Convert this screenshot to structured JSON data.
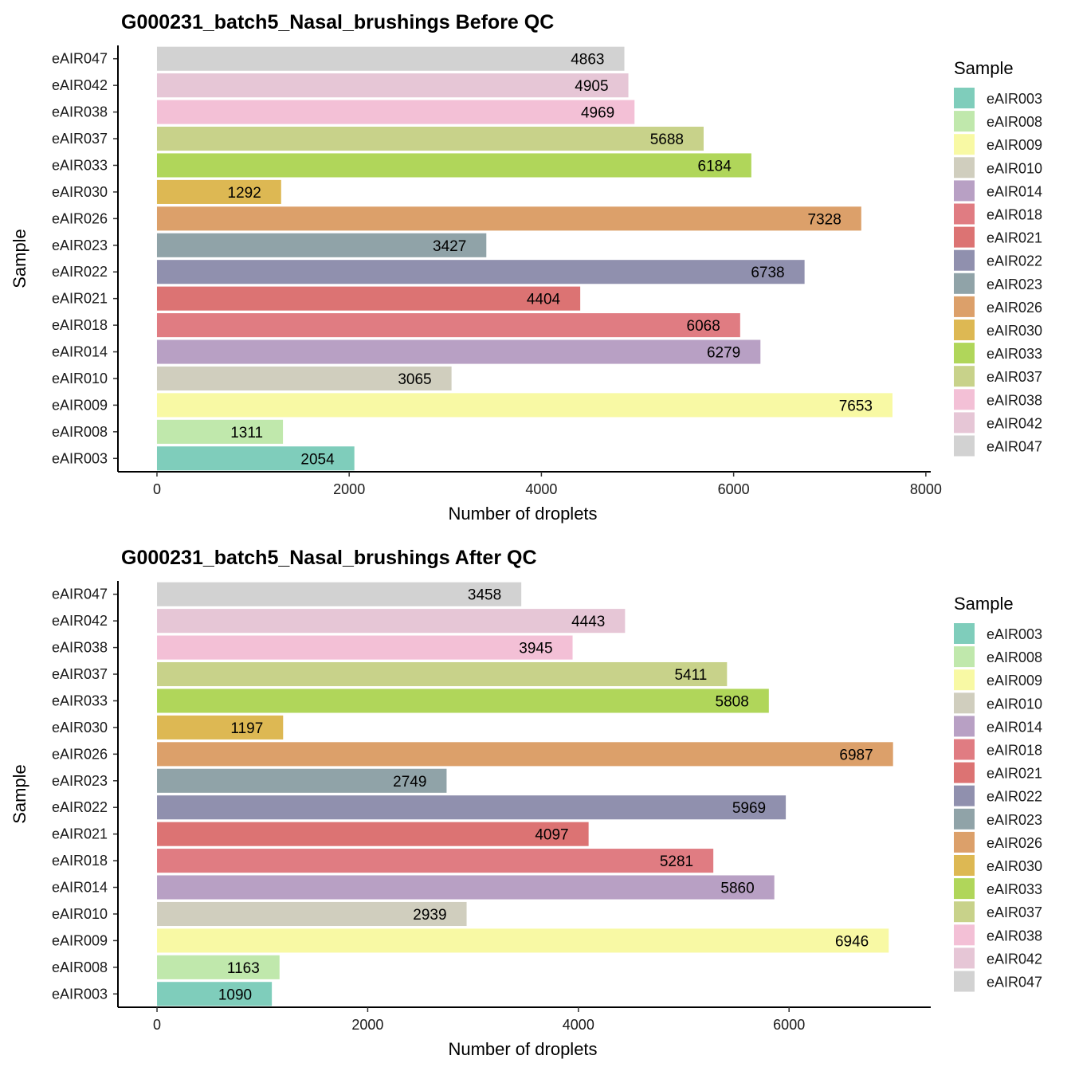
{
  "colors": {
    "eAIR003": "#7fcdbb",
    "eAIR008": "#c0e8ac",
    "eAIR009": "#f8f9a4",
    "eAIR010": "#d0cebe",
    "eAIR014": "#b8a0c4",
    "eAIR018": "#e07c82",
    "eAIR021": "#dc7373",
    "eAIR022": "#9090ae",
    "eAIR023": "#90a3a8",
    "eAIR026": "#dca06a",
    "eAIR030": "#ddb853",
    "eAIR033": "#b0d65a",
    "eAIR037": "#c8d28a",
    "eAIR038": "#f3c0d6",
    "eAIR042": "#e6c6d6",
    "eAIR047": "#d2d2d2"
  },
  "chart_data": [
    {
      "type": "bar",
      "orientation": "horizontal",
      "title": "G000231_batch5_Nasal_brushings Before QC",
      "xlabel": "Number of droplets",
      "ylabel": "Sample",
      "xlim": [
        -406,
        8051
      ],
      "xticks": [
        "0",
        "2000",
        "4000",
        "6000",
        "8000"
      ],
      "categories": [
        "eAIR003",
        "eAIR008",
        "eAIR009",
        "eAIR010",
        "eAIR014",
        "eAIR018",
        "eAIR021",
        "eAIR022",
        "eAIR023",
        "eAIR026",
        "eAIR030",
        "eAIR033",
        "eAIR037",
        "eAIR038",
        "eAIR042",
        "eAIR047"
      ],
      "values": [
        2054,
        1311,
        7653,
        3065,
        6279,
        6068,
        4404,
        6738,
        3427,
        7328,
        1292,
        6184,
        5688,
        4969,
        4905,
        4863
      ],
      "legend_title": "Sample",
      "legend_position": "right",
      "grid": false
    },
    {
      "type": "bar",
      "orientation": "horizontal",
      "title": "G000231_batch5_Nasal_brushings After QC",
      "xlabel": "Number of droplets",
      "ylabel": "Sample",
      "xlim": [
        -371,
        7345
      ],
      "xticks": [
        "0",
        "2000",
        "4000",
        "6000"
      ],
      "categories": [
        "eAIR003",
        "eAIR008",
        "eAIR009",
        "eAIR010",
        "eAIR014",
        "eAIR018",
        "eAIR021",
        "eAIR022",
        "eAIR023",
        "eAIR026",
        "eAIR030",
        "eAIR033",
        "eAIR037",
        "eAIR038",
        "eAIR042",
        "eAIR047"
      ],
      "values": [
        1090,
        1163,
        6946,
        2939,
        5860,
        5281,
        4097,
        5969,
        2749,
        6987,
        1197,
        5808,
        5411,
        3945,
        4443,
        3458
      ],
      "legend_title": "Sample",
      "legend_position": "right",
      "grid": false
    }
  ]
}
